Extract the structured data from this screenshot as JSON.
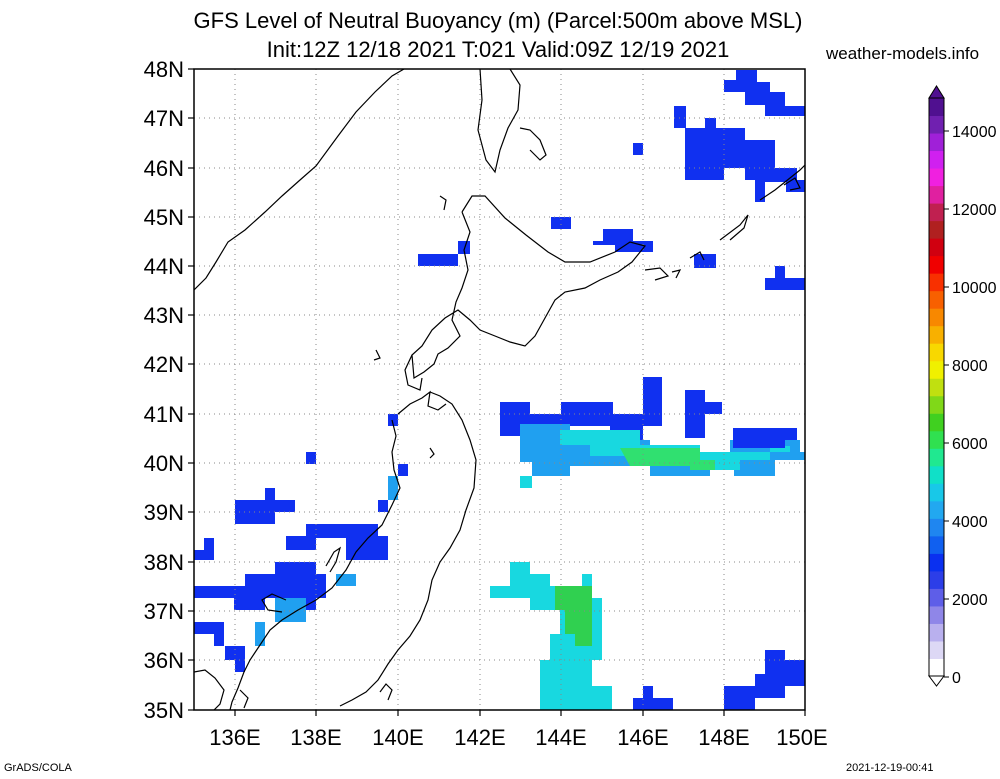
{
  "header": {
    "title_line1": "GFS Level of Neutral Buoyancy (m) (Parcel:500m above MSL)",
    "title_line2": "Init:12Z 12/18 2021 T:021 Valid:09Z 12/19 2021",
    "site": "weather-models.info"
  },
  "footer": {
    "left": "GrADS/COLA",
    "right": "2021-12-19-00:41"
  },
  "map": {
    "lat_labels": [
      "48N",
      "47N",
      "46N",
      "45N",
      "44N",
      "43N",
      "42N",
      "41N",
      "40N",
      "39N",
      "38N",
      "37N",
      "36N",
      "35N"
    ],
    "lon_labels": [
      "136E",
      "138E",
      "140E",
      "142E",
      "144E",
      "146E",
      "148E",
      "150E"
    ],
    "lat_range": [
      35,
      48
    ],
    "lon_range": [
      135,
      150
    ],
    "grid": true
  },
  "colorbar": {
    "labels": [
      "14000",
      "12000",
      "10000",
      "8000",
      "6000",
      "4000",
      "2000",
      "0"
    ],
    "range": [
      0,
      15000
    ],
    "colors": [
      "#ffffff",
      "#ddd8f5",
      "#b9b0ee",
      "#8f86e8",
      "#5e5ee8",
      "#2c3ee8",
      "#0a30f0",
      "#1060f0",
      "#1f86f0",
      "#22a8f0",
      "#18c8e8",
      "#10e0c8",
      "#20e890",
      "#30e050",
      "#40d020",
      "#80d818",
      "#c0e010",
      "#f0f000",
      "#f8d800",
      "#f8b000",
      "#f88800",
      "#f86000",
      "#f83000",
      "#f00000",
      "#d00010",
      "#b02020",
      "#c02050",
      "#e020a0",
      "#f020e0",
      "#d020f0",
      "#a020d8",
      "#7020b0",
      "#501090"
    ]
  },
  "regions_legend": {
    "low": "#1030f0",
    "mid": "#20a0f0",
    "cyan": "#18d8e0",
    "green": "#30d050"
  }
}
